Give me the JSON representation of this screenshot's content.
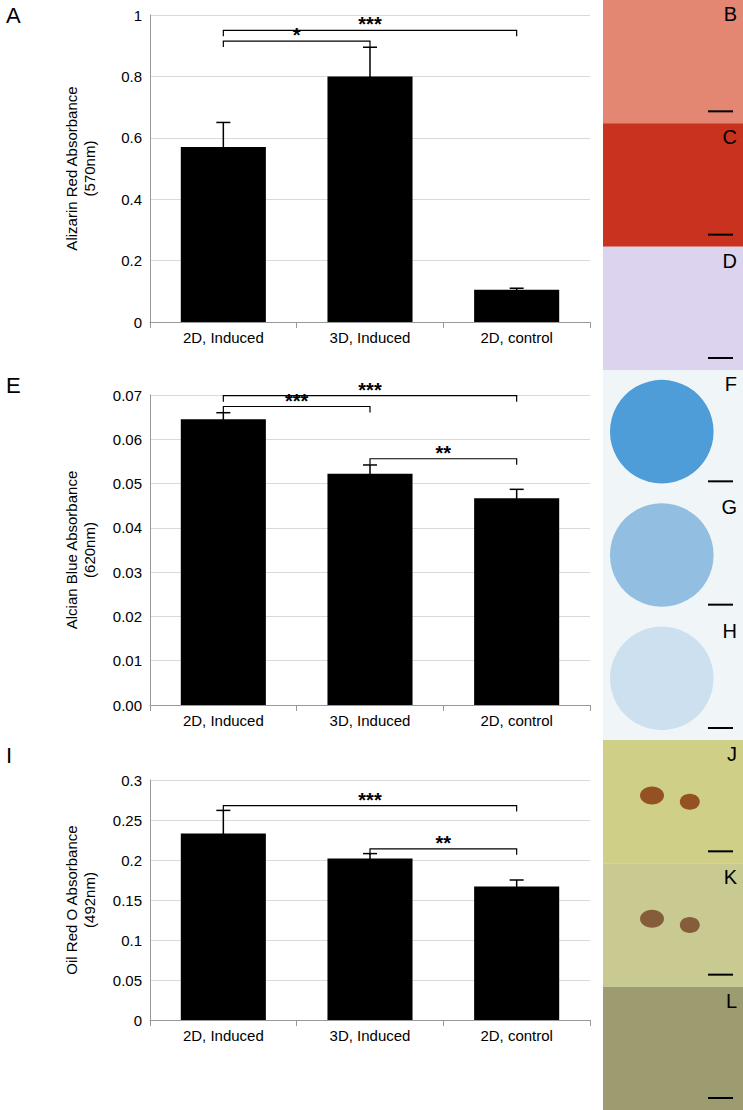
{
  "chart_data": [
    {
      "type": "bar",
      "panel": "A",
      "y_label": "Alizarin Red Absorbance\n(570nm)",
      "categories": [
        "2D, Induced",
        "3D, Induced",
        "2D, control"
      ],
      "values": [
        0.57,
        0.8,
        0.105
      ],
      "errors": [
        0.08,
        0.095,
        0.005
      ],
      "color": "#000000",
      "grid": true,
      "ylim": [
        0,
        1
      ],
      "yticks": [
        0,
        0.2,
        0.4,
        0.6,
        0.8,
        1
      ],
      "significance": [
        {
          "from": "2D, Induced",
          "to": "3D, Induced",
          "label": "*"
        },
        {
          "from": "2D, Induced",
          "to": "2D, control",
          "label": "***"
        }
      ],
      "image_panels": [
        "B",
        "C",
        "D"
      ]
    },
    {
      "type": "bar",
      "panel": "E",
      "y_label": "Alcian Blue Absorbance\n(620nm)",
      "categories": [
        "2D, Induced",
        "3D, Induced",
        "2D, control"
      ],
      "values": [
        0.0645,
        0.0522,
        0.0467
      ],
      "errors": [
        0.0015,
        0.002,
        0.002
      ],
      "color": "#000000",
      "grid": true,
      "ylim": [
        0,
        0.07
      ],
      "yticks": [
        {
          "value": 0,
          "label": "0.00"
        },
        0.01,
        0.02,
        0.03,
        0.04,
        0.05,
        0.06,
        0.07
      ],
      "significance": [
        {
          "from": "2D, Induced",
          "to": "3D, Induced",
          "label": "***"
        },
        {
          "from": "3D, Induced",
          "to": "2D, control",
          "label": "**"
        },
        {
          "from": "2D, Induced",
          "to": "2D, control",
          "label": "***"
        }
      ],
      "image_panels": [
        "F",
        "G",
        "H"
      ]
    },
    {
      "type": "bar",
      "panel": "I",
      "y_label": "Oil Red O Absorbance\n(492nm)",
      "categories": [
        "2D, Induced",
        "3D, Induced",
        "2D, control"
      ],
      "values": [
        0.233,
        0.202,
        0.167
      ],
      "errors": [
        0.029,
        0.006,
        0.008
      ],
      "color": "#000000",
      "grid": true,
      "ylim": [
        0,
        0.3
      ],
      "yticks": [
        0,
        0.05,
        0.1,
        0.15,
        0.2,
        0.25,
        0.3
      ],
      "significance": [
        {
          "from": "3D, Induced",
          "to": "2D, control",
          "label": "**"
        },
        {
          "from": "2D, Induced",
          "to": "2D, control",
          "label": "***"
        }
      ],
      "image_panels": [
        "J",
        "K",
        "L"
      ]
    }
  ]
}
